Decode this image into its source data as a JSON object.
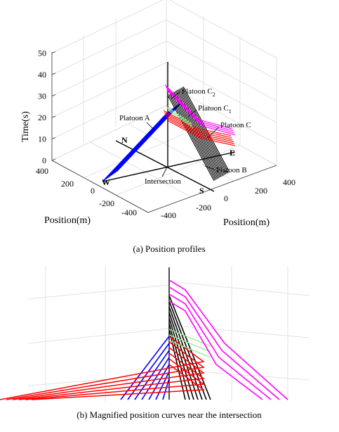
{
  "figure": {
    "caption_a": "(a) Position profiles",
    "caption_b": "(b) Magnified position curves near the intersection"
  },
  "chart_data": [
    {
      "type": "line",
      "projection": "3d",
      "ylabel": "Time(s)",
      "xlabel_left": "Position(m)",
      "xlabel_right": "Position(m)",
      "zlim": [
        0,
        50
      ],
      "z_ticks": [
        "0",
        "10",
        "20",
        "30",
        "40",
        "50"
      ],
      "left_axis_ticks": [
        "-400",
        "-200",
        "0",
        "200",
        "400"
      ],
      "right_axis_ticks": [
        "-400",
        "-200",
        "0",
        "200",
        "400"
      ],
      "direction_labels": [
        "N",
        "W",
        "S",
        "E"
      ],
      "center_label": "Intersection",
      "grid": true,
      "colors": {
        "platoon_a": "#0000ff",
        "platoon_b": "#000000",
        "platoon_c": "#ff0000",
        "platoon_c1": "#90ee90",
        "platoon_c2": "#ff00ff"
      },
      "annotations": [
        {
          "label": "Platoon C",
          "sub": "2",
          "series": "platoon_c2"
        },
        {
          "label": "Platoon C",
          "sub": "1",
          "series": "platoon_c1"
        },
        {
          "label": "Platoon C",
          "sub": "",
          "series": "platoon_c"
        },
        {
          "label": "Platoon A",
          "sub": "",
          "series": "platoon_a"
        },
        {
          "label": "Platoon B",
          "sub": "",
          "series": "platoon_b"
        }
      ],
      "series": [
        {
          "name": "Platoon A",
          "key": "platoon_a",
          "count": 14,
          "path": [
            {
              "p": 400,
              "t": 0
            },
            {
              "p": 0,
              "t": 26
            }
          ],
          "spacing": 0.55
        },
        {
          "name": "Platoon B",
          "key": "platoon_b",
          "count": 14,
          "path": [
            {
              "p": 0,
              "t": 34
            },
            {
              "p": 400,
              "t": 5
            }
          ],
          "spacing": 0.55
        },
        {
          "name": "Platoon C",
          "key": "platoon_c",
          "count": 6,
          "path": [
            {
              "p": 0,
              "t": 22
            },
            {
              "p": 200,
              "t": 10
            },
            {
              "p": 400,
              "t": 3
            }
          ],
          "spacing": 1.1
        },
        {
          "name": "Platoon C1",
          "key": "platoon_c1",
          "count": 3,
          "path": [
            {
              "p": 0,
              "t": 27
            },
            {
              "p": 150,
              "t": 16
            }
          ],
          "spacing": 1.1
        },
        {
          "name": "Platoon C2",
          "key": "platoon_c2",
          "count": 4,
          "path": [
            {
              "p": 0,
              "t": 36
            },
            {
              "p": 200,
              "t": 16
            },
            {
              "p": 400,
              "t": 8
            }
          ],
          "spacing": 1.1
        }
      ]
    }
  ]
}
